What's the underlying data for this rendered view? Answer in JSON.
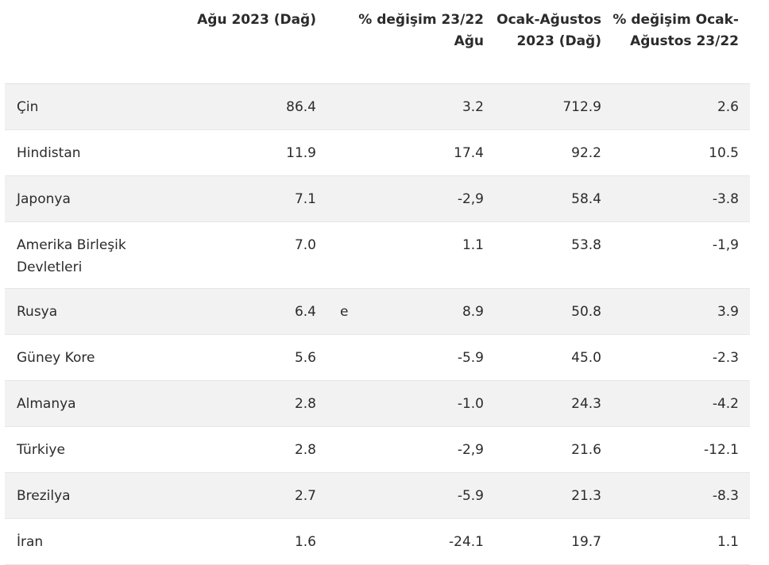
{
  "table": {
    "headers": {
      "country": "",
      "aug": "Ağu 2023 (Dağ)",
      "flag": "",
      "pct_aug": "% değişim 23/22 Ağu",
      "ytd": "Ocak-Ağustos 2023 (Dağ)",
      "pct_ytd": "% değişim Ocak-Ağustos 23/22"
    },
    "rows": [
      {
        "country": "Çin",
        "aug": "86.4",
        "flag": "",
        "pct_aug": "3.2",
        "ytd": "712.9",
        "pct_ytd": "2.6"
      },
      {
        "country": "Hindistan",
        "aug": "11.9",
        "flag": "",
        "pct_aug": "17.4",
        "ytd": "92.2",
        "pct_ytd": "10.5"
      },
      {
        "country": "Japonya",
        "aug": "7.1",
        "flag": "",
        "pct_aug": "-2,9",
        "ytd": "58.4",
        "pct_ytd": "-3.8"
      },
      {
        "country": "Amerika Birleşik Devletleri",
        "aug": "7.0",
        "flag": "",
        "pct_aug": "1.1",
        "ytd": "53.8",
        "pct_ytd": "-1,9"
      },
      {
        "country": "Rusya",
        "aug": "6.4",
        "flag": "e",
        "pct_aug": "8.9",
        "ytd": "50.8",
        "pct_ytd": "3.9"
      },
      {
        "country": "Güney Kore",
        "aug": "5.6",
        "flag": "",
        "pct_aug": "-5.9",
        "ytd": "45.0",
        "pct_ytd": "-2.3"
      },
      {
        "country": "Almanya",
        "aug": "2.8",
        "flag": "",
        "pct_aug": "-1.0",
        "ytd": "24.3",
        "pct_ytd": "-4.2"
      },
      {
        "country": "Türkiye",
        "aug": "2.8",
        "flag": "",
        "pct_aug": "-2,9",
        "ytd": "21.6",
        "pct_ytd": "-12.1"
      },
      {
        "country": "Brezilya",
        "aug": "2.7",
        "flag": "",
        "pct_aug": "-5.9",
        "ytd": "21.3",
        "pct_ytd": "-8.3"
      },
      {
        "country": "İran",
        "aug": "1.6",
        "flag": "",
        "pct_aug": "-24.1",
        "ytd": "19.7",
        "pct_ytd": "1.1"
      }
    ]
  }
}
